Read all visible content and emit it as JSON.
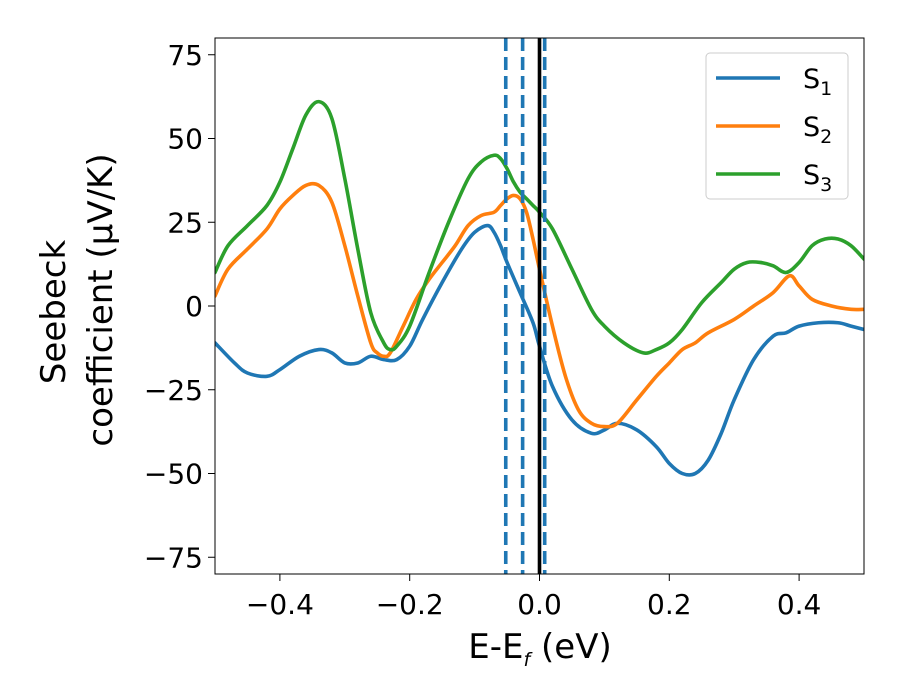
{
  "chart_data": {
    "type": "line",
    "title": "",
    "xlabel": {
      "main": "E-E",
      "sub": "f",
      "suffix": " (eV)"
    },
    "ylabel": {
      "line1": "Seebeck",
      "line2": "coefficient  (μV/K)"
    },
    "xlim": [
      -0.5,
      0.5
    ],
    "ylim": [
      -80,
      80
    ],
    "xticks": [
      -0.4,
      -0.2,
      0.0,
      0.2,
      0.4
    ],
    "xtick_labels": [
      "−0.4",
      "−0.2",
      "0.0",
      "0.2",
      "0.4"
    ],
    "yticks": [
      -75,
      -50,
      -25,
      0,
      25,
      50,
      75
    ],
    "ytick_labels": [
      "−75",
      "−50",
      "−25",
      "0",
      "25",
      "50",
      "75"
    ],
    "grid": false,
    "legend_position": "top-right",
    "series": [
      {
        "name": "S",
        "sub": "1",
        "color": "#1f77b4",
        "x": [
          -0.5,
          -0.47,
          -0.45,
          -0.42,
          -0.4,
          -0.37,
          -0.34,
          -0.32,
          -0.3,
          -0.28,
          -0.26,
          -0.24,
          -0.22,
          -0.2,
          -0.18,
          -0.15,
          -0.12,
          -0.1,
          -0.08,
          -0.07,
          -0.06,
          -0.05,
          -0.03,
          -0.01,
          0.0,
          0.02,
          0.05,
          0.08,
          0.1,
          0.12,
          0.15,
          0.18,
          0.2,
          0.22,
          0.24,
          0.26,
          0.28,
          0.3,
          0.33,
          0.36,
          0.38,
          0.4,
          0.43,
          0.46,
          0.48,
          0.5
        ],
        "y": [
          -11,
          -17,
          -20,
          -21,
          -19,
          -15,
          -13,
          -14,
          -17,
          -17,
          -15,
          -16,
          -16,
          -12,
          -4,
          7,
          17,
          22,
          24,
          22,
          18,
          13,
          4,
          -5,
          -12,
          -24,
          -34,
          -38,
          -37,
          -35,
          -37,
          -42,
          -47,
          -50,
          -50,
          -46,
          -38,
          -28,
          -16,
          -9,
          -8,
          -6,
          -5,
          -5,
          -6,
          -7
        ]
      },
      {
        "name": "S",
        "sub": "2",
        "color": "#ff7f0e",
        "x": [
          -0.5,
          -0.48,
          -0.45,
          -0.42,
          -0.4,
          -0.38,
          -0.36,
          -0.34,
          -0.32,
          -0.3,
          -0.28,
          -0.26,
          -0.25,
          -0.24,
          -0.23,
          -0.21,
          -0.19,
          -0.17,
          -0.15,
          -0.13,
          -0.11,
          -0.09,
          -0.07,
          -0.06,
          -0.05,
          -0.04,
          -0.03,
          -0.02,
          -0.01,
          0.0,
          0.02,
          0.04,
          0.06,
          0.08,
          0.1,
          0.12,
          0.15,
          0.18,
          0.2,
          0.22,
          0.24,
          0.26,
          0.3,
          0.33,
          0.36,
          0.385,
          0.4,
          0.42,
          0.45,
          0.48,
          0.5
        ],
        "y": [
          3,
          11,
          17,
          23,
          29,
          33,
          36,
          36,
          31,
          18,
          3,
          -11,
          -14,
          -15,
          -14,
          -6,
          2,
          8,
          13,
          18,
          24,
          27,
          28,
          30,
          32,
          33,
          32,
          28,
          20,
          11,
          -6,
          -21,
          -31,
          -35,
          -36,
          -35,
          -28,
          -21,
          -17,
          -13,
          -11,
          -8,
          -4,
          0,
          4,
          9,
          6,
          2,
          0,
          -1,
          -1
        ]
      },
      {
        "name": "S",
        "sub": "3",
        "color": "#2ca02c",
        "x": [
          -0.5,
          -0.48,
          -0.45,
          -0.42,
          -0.4,
          -0.38,
          -0.36,
          -0.34,
          -0.32,
          -0.3,
          -0.28,
          -0.26,
          -0.24,
          -0.23,
          -0.22,
          -0.2,
          -0.17,
          -0.14,
          -0.11,
          -0.09,
          -0.07,
          -0.06,
          -0.05,
          -0.04,
          -0.03,
          -0.02,
          -0.01,
          0.0,
          0.02,
          0.05,
          0.08,
          0.1,
          0.13,
          0.16,
          0.18,
          0.2,
          0.22,
          0.25,
          0.28,
          0.3,
          0.32,
          0.34,
          0.36,
          0.38,
          0.4,
          0.42,
          0.44,
          0.46,
          0.48,
          0.5
        ],
        "y": [
          10,
          18,
          24,
          30,
          37,
          47,
          57,
          61,
          56,
          38,
          17,
          -2,
          -11,
          -13,
          -12,
          -6,
          10,
          25,
          38,
          43,
          45,
          44,
          41,
          37,
          34,
          32,
          30,
          28,
          23,
          11,
          -1,
          -6,
          -11,
          -14,
          -13,
          -11,
          -7,
          1,
          7,
          11,
          13,
          13,
          12,
          10,
          13,
          18,
          20,
          20,
          18,
          14
        ]
      }
    ],
    "vertical_lines": [
      {
        "x": -0.052,
        "style": "dashed",
        "color": "#1f77b4"
      },
      {
        "x": -0.026,
        "style": "dashed",
        "color": "#1f77b4"
      },
      {
        "x": 0.008,
        "style": "dashed",
        "color": "#1f77b4"
      },
      {
        "x": 0.0,
        "style": "solid",
        "color": "#000000"
      }
    ]
  }
}
